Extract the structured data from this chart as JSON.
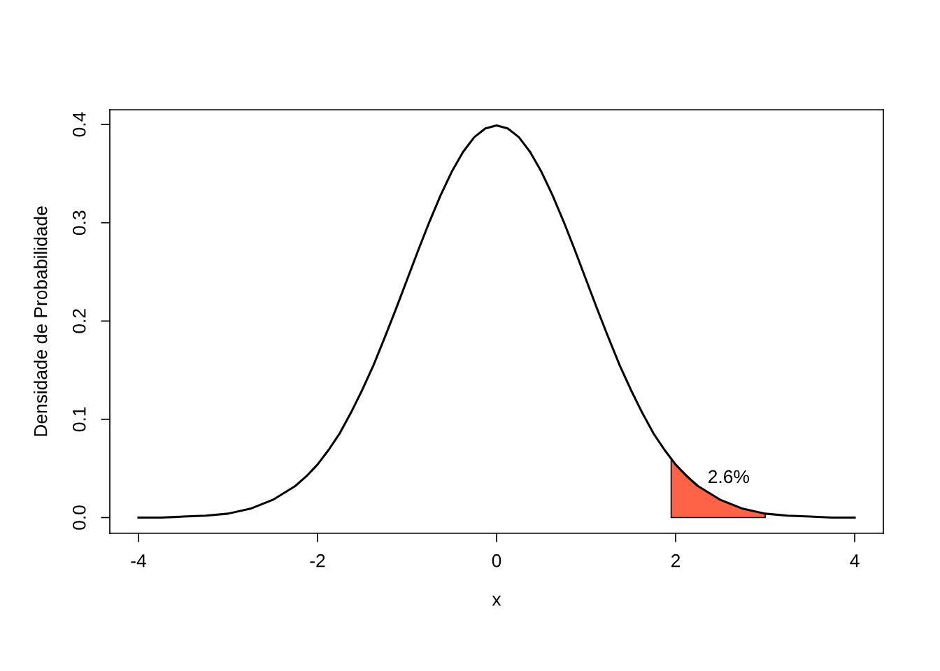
{
  "chart_data": {
    "type": "line",
    "xlabel": "x",
    "ylabel": "Densidade de Probabilidade",
    "xlim": [
      -4.32,
      4.32
    ],
    "ylim": [
      -0.016,
      0.415
    ],
    "xticks": [
      -4,
      -2,
      0,
      2,
      4
    ],
    "yticks": [
      {
        "value": 0,
        "label": "0.0"
      },
      0.1,
      0.2,
      0.3,
      0.4
    ],
    "grid": false,
    "legend": false,
    "series": [
      {
        "color": "#000000",
        "x": [
          -4,
          -3.75,
          -3.5,
          -3.25,
          -3,
          -2.75,
          -2.5,
          -2.25,
          -2.125,
          -2,
          -1.875,
          -1.75,
          -1.625,
          -1.5,
          -1.375,
          -1.25,
          -1.125,
          -1,
          -0.875,
          -0.75,
          -0.625,
          -0.5,
          -0.375,
          -0.25,
          -0.125,
          0,
          0.125,
          0.25,
          0.375,
          0.5,
          0.625,
          0.75,
          0.875,
          1,
          1.125,
          1.25,
          1.375,
          1.5,
          1.625,
          1.75,
          1.875,
          2,
          2.125,
          2.25,
          2.5,
          2.75,
          3,
          3.25,
          3.5,
          3.75,
          4
        ],
        "values": [
          0.0,
          0.0,
          0.001,
          0.002,
          0.004,
          0.009,
          0.018,
          0.032,
          0.042,
          0.054,
          0.069,
          0.086,
          0.107,
          0.13,
          0.155,
          0.183,
          0.212,
          0.242,
          0.272,
          0.301,
          0.328,
          0.352,
          0.372,
          0.387,
          0.396,
          0.399,
          0.396,
          0.387,
          0.372,
          0.352,
          0.328,
          0.301,
          0.272,
          0.242,
          0.212,
          0.183,
          0.155,
          0.13,
          0.107,
          0.086,
          0.069,
          0.054,
          0.042,
          0.032,
          0.018,
          0.009,
          0.004,
          0.002,
          0.001,
          0.0,
          0.0
        ]
      },
      {
        "type": "area",
        "color": "#ff6347",
        "x": [
          1.95,
          2,
          2.25,
          2.5,
          2.75,
          3
        ],
        "values": [
          0.06,
          0.054,
          0.032,
          0.018,
          0.009,
          0.004
        ]
      }
    ],
    "annotations": [
      "2.6%"
    ]
  }
}
